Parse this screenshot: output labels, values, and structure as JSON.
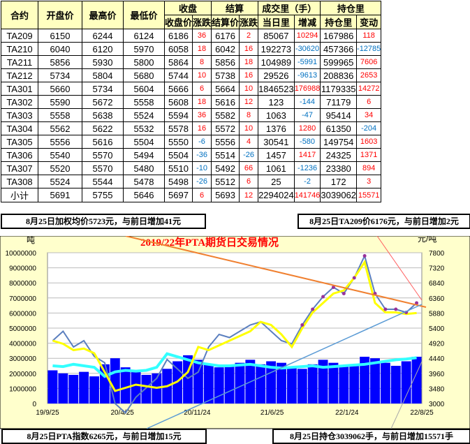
{
  "table": {
    "group_headers": [
      "收盘",
      "结算",
      "成交里（手）",
      "持仓里"
    ],
    "headers": [
      "合约",
      "开盘价",
      "最高价",
      "最低价",
      "收盘价",
      "涨跌",
      "结算价",
      "涨跌",
      "当日里",
      "增减",
      "持仓里",
      "变动"
    ],
    "rows": [
      [
        "TA209",
        "6150",
        "6244",
        "6124",
        "6186",
        "36",
        "6176",
        "2",
        "85067",
        "10294",
        "167986",
        "118"
      ],
      [
        "TA210",
        "6040",
        "6120",
        "5970",
        "6058",
        "18",
        "6042",
        "16",
        "192273",
        "-30620",
        "457366",
        "-12785"
      ],
      [
        "TA211",
        "5856",
        "5930",
        "5800",
        "5864",
        "8",
        "5856",
        "18",
        "104989",
        "-5991",
        "599965",
        "7606"
      ],
      [
        "TA212",
        "5734",
        "5804",
        "5680",
        "5744",
        "10",
        "5738",
        "16",
        "29526",
        "-9613",
        "208836",
        "2653"
      ],
      [
        "TA301",
        "5660",
        "5734",
        "5604",
        "5666",
        "6",
        "5664",
        "10",
        "1846523",
        "176988",
        "1179335",
        "14272"
      ],
      [
        "TA302",
        "5590",
        "5672",
        "5558",
        "5608",
        "18",
        "5616",
        "12",
        "123",
        "-144",
        "71179",
        "6"
      ],
      [
        "TA303",
        "5558",
        "5638",
        "5524",
        "5594",
        "36",
        "5582",
        "8",
        "1063",
        "-47",
        "95414",
        "34"
      ],
      [
        "TA304",
        "5562",
        "5622",
        "5532",
        "5578",
        "16",
        "5572",
        "10",
        "1376",
        "1280",
        "61350",
        "-204"
      ],
      [
        "TA305",
        "5556",
        "5616",
        "5504",
        "5550",
        "-6",
        "5556",
        "4",
        "30541",
        "-580",
        "149754",
        "1603"
      ],
      [
        "TA306",
        "5540",
        "5570",
        "5494",
        "5504",
        "-36",
        "5514",
        "-26",
        "1457",
        "1417",
        "24325",
        "1371"
      ],
      [
        "TA307",
        "5520",
        "5570",
        "5480",
        "5510",
        "-10",
        "5492",
        "66",
        "1061",
        "-1236",
        "23380",
        "894"
      ],
      [
        "TA308",
        "5524",
        "5544",
        "5478",
        "5498",
        "-26",
        "5512",
        "6",
        "25",
        "-2",
        "172",
        "3"
      ],
      [
        "小计",
        "5691",
        "5755",
        "5646",
        "5697",
        "6",
        "5693",
        "12",
        "2294024",
        "141746",
        "3039062",
        "15571"
      ]
    ]
  },
  "labels": {
    "top_left": "8月25日加权均价5723元，与前日增加41元",
    "top_right": "8月25日TA209价6176元，与前日增加2元",
    "bottom_left": "8月25日PTA指数6265元，与前日增加15元",
    "bottom_right": "8月25日持仓3039062手，与前日增加15571手"
  },
  "chart_data": {
    "type": "bar+line",
    "title": "2019/22年PTA期货日交易情况",
    "ylabel_left": "吨",
    "ylabel_right": "元/吨",
    "ylim_left": [
      0,
      10000000
    ],
    "ylim_right": [
      3000,
      7800
    ],
    "yticks_left": [
      "0",
      "1000000",
      "2000000",
      "3000000",
      "4000000",
      "5000000",
      "6000000",
      "7000000",
      "8000000",
      "9000000",
      "10000000"
    ],
    "yticks_right": [
      "3000",
      "3480",
      "3960",
      "4440",
      "4920",
      "5400",
      "5880",
      "6360",
      "6840",
      "7320",
      "7800"
    ],
    "xticks": [
      "19/9/25",
      "20/4/25",
      "20/11/24",
      "21/6/25",
      "22/1/24",
      "22/8/25"
    ],
    "grid": "horizontal",
    "colors": {
      "volume": "#0000ff",
      "open_interest": "#33ffff",
      "price": "#ffff00",
      "price2": "#5b7fbf",
      "dots": "#993399",
      "bg": "#ffffcc"
    },
    "volume_monthly": [
      2200000,
      2000000,
      1900000,
      2100000,
      1800000,
      2600000,
      3000000,
      2400000,
      2100000,
      1900000,
      2000000,
      2300000,
      2800000,
      3200000,
      2900000,
      2600000,
      2400000,
      2500000,
      2700000,
      2900000,
      2600000,
      2800000,
      2700000,
      2400000,
      2300000,
      2600000,
      2900000,
      2700000,
      2500000,
      2600000,
      3100000,
      3000000,
      2700000,
      2500000,
      2800000,
      3100000
    ],
    "open_interest_monthly": [
      2500000,
      2450000,
      2600000,
      2500000,
      2400000,
      1800000,
      2100000,
      2200000,
      2150000,
      2200000,
      2400000,
      3300000,
      3100000,
      2900000,
      2700000,
      2600000,
      2500000,
      2500000,
      2550000,
      2600000,
      2500000,
      2400000,
      2350000,
      2400000,
      2450000,
      2500000,
      2400000,
      2450000,
      2500000,
      2550000,
      2600000,
      2700000,
      2800000,
      2900000,
      2950000,
      3040000
    ],
    "price_monthly": [
      5000,
      4900,
      4700,
      4750,
      4600,
      4000,
      3400,
      3500,
      3600,
      3550,
      3500,
      3550,
      3700,
      4000,
      4800,
      4700,
      4850,
      5000,
      5150,
      5300,
      5600,
      5500,
      5200,
      4800,
      5400,
      5900,
      6200,
      6500,
      6600,
      7000,
      7500,
      6200,
      5900,
      5900,
      5850,
      5880
    ],
    "price2_monthly": [
      5000,
      5300,
      4800,
      5000,
      4500,
      4300,
      3000,
      2700,
      3200,
      3500,
      3800,
      4400,
      4100,
      3800,
      4000,
      4800,
      5200,
      5100,
      5300,
      5500,
      5600,
      5300,
      5000,
      4900,
      5500,
      6000,
      6400,
      6700,
      6500,
      7000,
      7700,
      6500,
      6000,
      6000,
      5900,
      6200
    ]
  }
}
